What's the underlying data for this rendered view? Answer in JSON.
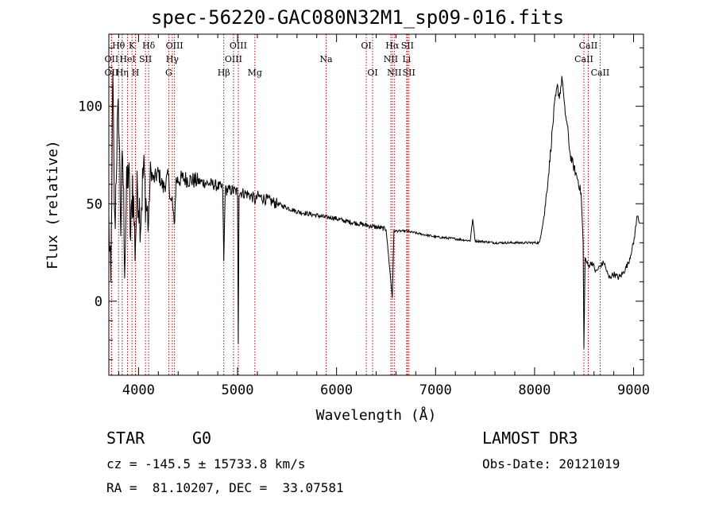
{
  "title": "spec-56220-GAC080N32M1_sp09-016.fits",
  "info": {
    "class": "STAR",
    "subclass": "G0",
    "survey": "LAMOST DR3",
    "cz": "cz = -145.5 ± 15733.8 km/s",
    "obs_date": "Obs-Date: 20121019",
    "radec": "RA =  81.10207, DEC =  33.07581"
  },
  "chart_data": {
    "type": "line",
    "title": "spec-56220-GAC080N32M1_sp09-016.fits",
    "xlabel": "Wavelength (Å)",
    "ylabel": "Flux (relative)",
    "xlim": [
      3700,
      9100
    ],
    "ylim": [
      -38,
      137
    ],
    "xticks": [
      4000,
      5000,
      6000,
      7000,
      8000,
      9000
    ],
    "yticks": [
      0,
      50,
      100
    ],
    "series": [
      {
        "name": "spectrum",
        "anchors": [
          [
            3700,
            40
          ],
          [
            3720,
            5
          ],
          [
            3740,
            112
          ],
          [
            3760,
            35
          ],
          [
            3780,
            80
          ],
          [
            3800,
            98
          ],
          [
            3820,
            40
          ],
          [
            3840,
            75
          ],
          [
            3860,
            22
          ],
          [
            3880,
            55
          ],
          [
            3900,
            70
          ],
          [
            3920,
            30
          ],
          [
            3940,
            62
          ],
          [
            3965,
            28
          ],
          [
            3990,
            60
          ],
          [
            4020,
            42
          ],
          [
            4050,
            68
          ],
          [
            4080,
            48
          ],
          [
            4101,
            40
          ],
          [
            4120,
            68
          ],
          [
            4150,
            62
          ],
          [
            4200,
            66
          ],
          [
            4250,
            58
          ],
          [
            4300,
            64
          ],
          [
            4330,
            50
          ],
          [
            4340,
            52
          ],
          [
            4360,
            38
          ],
          [
            4380,
            62
          ],
          [
            4450,
            63
          ],
          [
            4550,
            62
          ],
          [
            4650,
            61
          ],
          [
            4750,
            60
          ],
          [
            4850,
            58
          ],
          [
            4861,
            20
          ],
          [
            4875,
            57
          ],
          [
            4950,
            57
          ],
          [
            5000,
            56
          ],
          [
            5007,
            -20
          ],
          [
            5015,
            56
          ],
          [
            5100,
            55
          ],
          [
            5167,
            53
          ],
          [
            5183,
            51
          ],
          [
            5200,
            54
          ],
          [
            5300,
            52
          ],
          [
            5400,
            50
          ],
          [
            5500,
            48
          ],
          [
            5600,
            46
          ],
          [
            5700,
            45
          ],
          [
            5800,
            44
          ],
          [
            5893,
            43
          ],
          [
            5950,
            43
          ],
          [
            6100,
            41
          ],
          [
            6300,
            39
          ],
          [
            6400,
            38
          ],
          [
            6500,
            37
          ],
          [
            6563,
            2
          ],
          [
            6580,
            36
          ],
          [
            6700,
            36
          ],
          [
            6800,
            35
          ],
          [
            6900,
            34
          ],
          [
            7000,
            33
          ],
          [
            7200,
            32
          ],
          [
            7350,
            31
          ],
          [
            7375,
            42
          ],
          [
            7400,
            31
          ],
          [
            7600,
            30
          ],
          [
            7900,
            30
          ],
          [
            8050,
            30
          ],
          [
            8100,
            45
          ],
          [
            8150,
            70
          ],
          [
            8200,
            100
          ],
          [
            8230,
            110
          ],
          [
            8250,
            105
          ],
          [
            8280,
            115
          ],
          [
            8300,
            100
          ],
          [
            8330,
            90
          ],
          [
            8360,
            75
          ],
          [
            8400,
            68
          ],
          [
            8440,
            62
          ],
          [
            8470,
            55
          ],
          [
            8490,
            30
          ],
          [
            8498,
            -25
          ],
          [
            8510,
            22
          ],
          [
            8542,
            18
          ],
          [
            8580,
            20
          ],
          [
            8620,
            15
          ],
          [
            8662,
            18
          ],
          [
            8700,
            20
          ],
          [
            8750,
            12
          ],
          [
            8800,
            14
          ],
          [
            8850,
            12
          ],
          [
            8900,
            15
          ],
          [
            8950,
            20
          ],
          [
            9000,
            30
          ],
          [
            9040,
            45
          ],
          [
            9060,
            40
          ]
        ]
      }
    ],
    "line_markers": [
      {
        "label": "OII",
        "wavelength": 3727,
        "row": 2
      },
      {
        "label": "OII",
        "wavelength": 3727,
        "row": 1
      },
      {
        "label": "Hθ",
        "wavelength": 3798,
        "row": 0
      },
      {
        "label": "Hη",
        "wavelength": 3835,
        "row": 2
      },
      {
        "label": "K",
        "wavelength": 3934,
        "row": 0
      },
      {
        "label": "HeI",
        "wavelength": 3889,
        "row": 1
      },
      {
        "label": "H",
        "wavelength": 3969,
        "row": 2
      },
      {
        "label": "SII",
        "wavelength": 4070,
        "row": 1
      },
      {
        "label": "Hδ",
        "wavelength": 4102,
        "row": 0
      },
      {
        "label": "G",
        "wavelength": 4305,
        "row": 2
      },
      {
        "label": "Hγ",
        "wavelength": 4341,
        "row": 1
      },
      {
        "label": "OIII",
        "wavelength": 4363,
        "row": 0
      },
      {
        "label": "Hβ",
        "wavelength": 4861,
        "row": 2
      },
      {
        "label": "OIII",
        "wavelength": 4959,
        "row": 1
      },
      {
        "label": "OIII",
        "wavelength": 5007,
        "row": 0
      },
      {
        "label": "Mg",
        "wavelength": 5175,
        "row": 2
      },
      {
        "label": "Na",
        "wavelength": 5894,
        "row": 1
      },
      {
        "label": "OI",
        "wavelength": 6300,
        "row": 0
      },
      {
        "label": "OI",
        "wavelength": 6364,
        "row": 2
      },
      {
        "label": "NII",
        "wavelength": 6548,
        "row": 1
      },
      {
        "label": "Hα",
        "wavelength": 6563,
        "row": 0
      },
      {
        "label": "NII",
        "wavelength": 6583,
        "row": 2
      },
      {
        "label": "SII",
        "wavelength": 6716,
        "row": 0
      },
      {
        "label": "Li",
        "wavelength": 6708,
        "row": 1
      },
      {
        "label": "SII",
        "wavelength": 6731,
        "row": 2
      },
      {
        "label": "CaII",
        "wavelength": 8498,
        "row": 1
      },
      {
        "label": "CaII",
        "wavelength": 8542,
        "row": 0
      },
      {
        "label": "CaII",
        "wavelength": 8662,
        "row": 2
      }
    ]
  }
}
